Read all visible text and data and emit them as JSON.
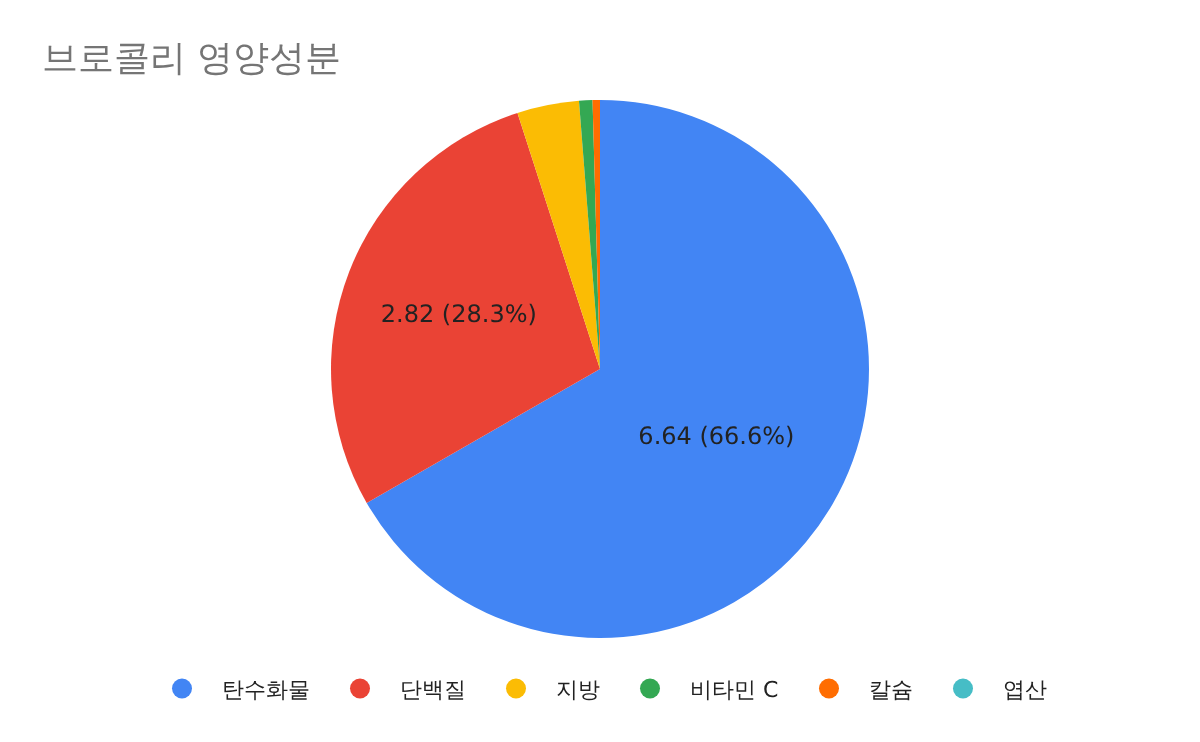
{
  "chart_data": {
    "type": "pie",
    "title": "브로콜리 영양성분",
    "categories": [
      "탄수화물",
      "단백질",
      "지방",
      "비타민 C",
      "칼슘",
      "엽산"
    ],
    "values": [
      6.64,
      2.82,
      0.37,
      0.08,
      0.044,
      null
    ],
    "colors": [
      "#4285f4",
      "#ea4335",
      "#fbbc04",
      "#34a853",
      "#ff6d01",
      "#46bdc6"
    ],
    "value_labels": [
      "6.64 (66.6%)",
      "2.82 (28.3%)",
      null,
      null,
      null,
      null
    ],
    "legend": "bottom"
  }
}
